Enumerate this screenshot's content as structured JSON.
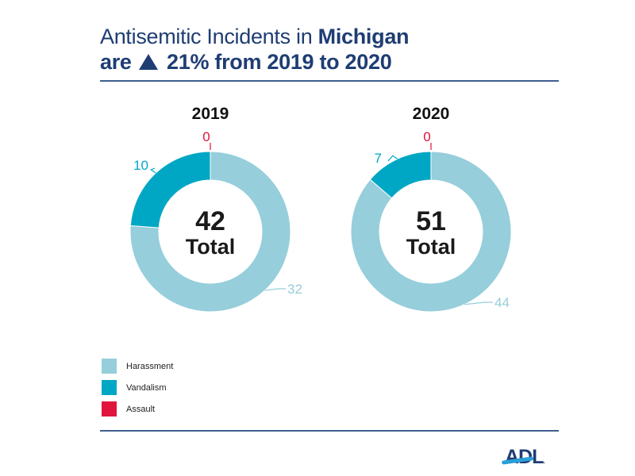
{
  "header": {
    "title_line1_prefix": "Antisemitic Incidents in ",
    "title_line1_bold": "Michigan",
    "title_line2_prefix": "are",
    "title_line2_suffix": "21% from 2019 to 2020",
    "change_icon": "up-triangle-icon"
  },
  "colors": {
    "harassment": "#96cedb",
    "vandalism": "#00a7c4",
    "assault": "#e0143c",
    "title": "#1f3d73",
    "rule": "#3f5f8f"
  },
  "legend": [
    {
      "label": "Harassment",
      "color": "#96cedb"
    },
    {
      "label": "Vandalism",
      "color": "#00a7c4"
    },
    {
      "label": "Assault",
      "color": "#e0143c"
    }
  ],
  "chart_data": [
    {
      "type": "pie",
      "title": "2019",
      "center_value": "42",
      "center_label": "Total",
      "categories": [
        "Harassment",
        "Vandalism",
        "Assault"
      ],
      "values": [
        32,
        10,
        0
      ],
      "total": 42
    },
    {
      "type": "pie",
      "title": "2020",
      "center_value": "51",
      "center_label": "Total",
      "categories": [
        "Harassment",
        "Vandalism",
        "Assault"
      ],
      "values": [
        44,
        7,
        0
      ],
      "total": 51
    }
  ],
  "footer": {
    "logo_text": "ADL",
    "logo_dot": "."
  }
}
